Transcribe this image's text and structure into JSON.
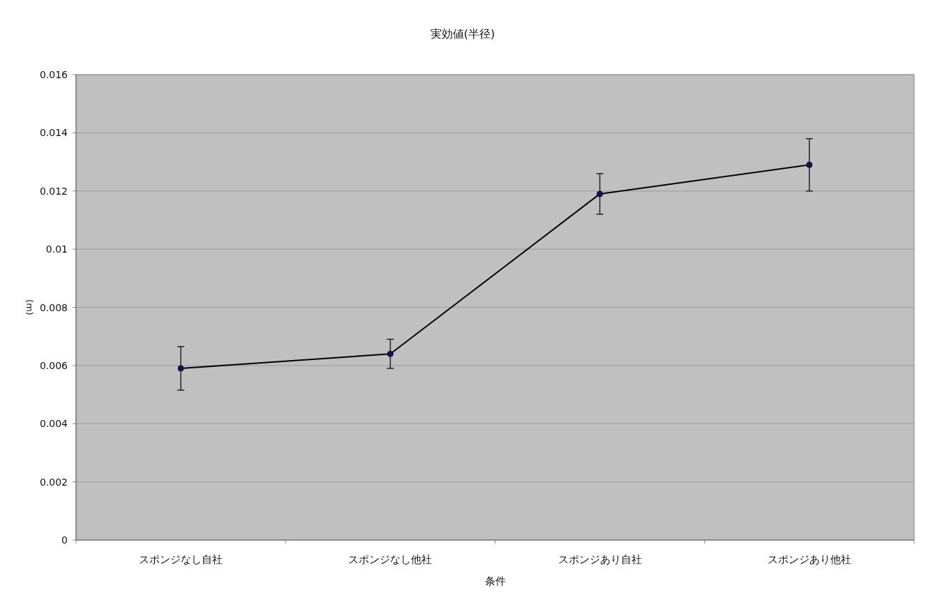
{
  "chart_data": {
    "type": "line",
    "title": "実効値(半径)",
    "xlabel": "条件",
    "ylabel": "(m)",
    "categories": [
      "スポンジなし自社",
      "スポンジなし他社",
      "スポンジあり自社",
      "スポンジあり他社"
    ],
    "series": [
      {
        "color": "#000000",
        "values": [
          0.0059,
          0.0064,
          0.0119,
          0.0129
        ],
        "errors": [
          0.00075,
          0.0005,
          0.0007,
          0.0009
        ]
      }
    ],
    "ylim": [
      0,
      0.016
    ],
    "yticks": [
      0,
      0.002,
      0.004,
      0.006,
      0.008,
      0.01,
      0.012,
      0.014,
      0.016
    ],
    "grid": "y",
    "marker": "circle",
    "line_style": "solid"
  }
}
